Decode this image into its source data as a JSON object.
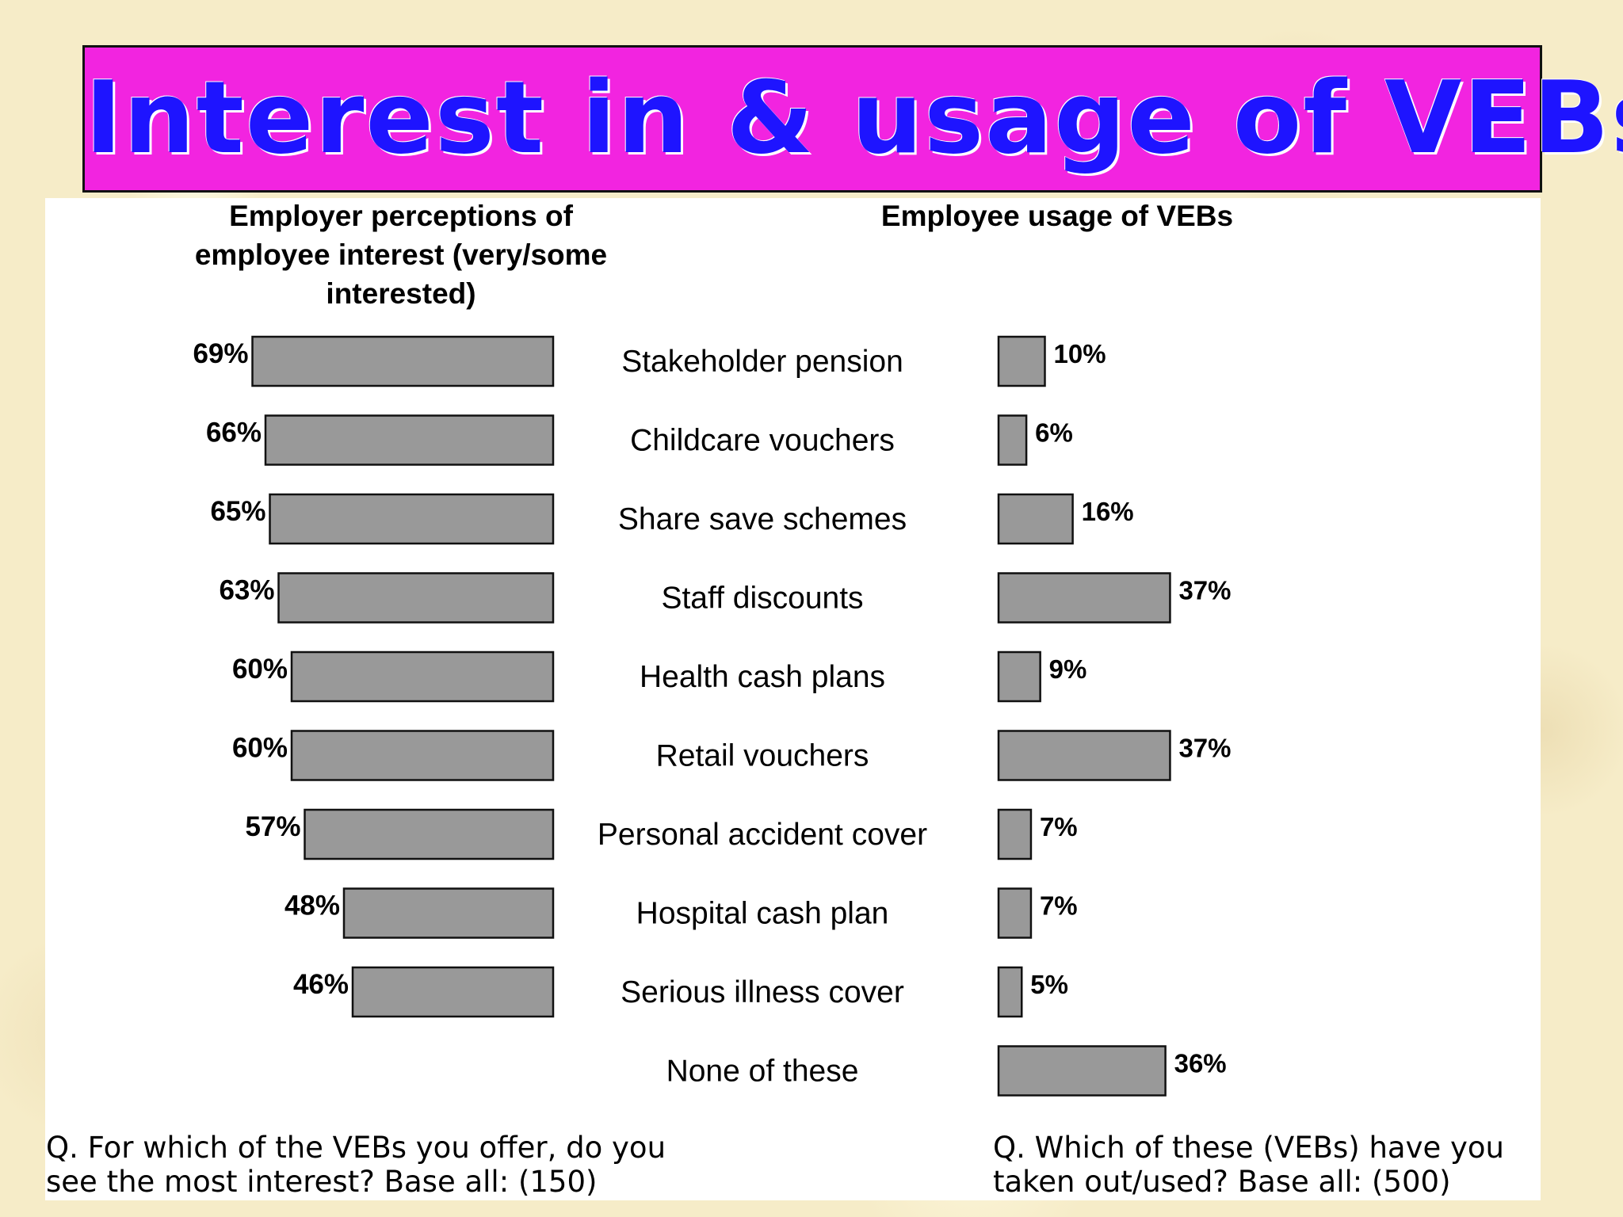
{
  "title": "Interest in & usage of VEBs",
  "left_panel": {
    "header_lines": [
      "Employer perceptions of",
      "employee interest (very/some",
      "interested)"
    ],
    "note_lines": [
      "Q. For which of the VEBs you offer, do you",
      "see the most interest? Base all: (150)"
    ]
  },
  "right_panel": {
    "header": "Employee usage of VEBs",
    "note_lines": [
      "Q. Which of these (VEBs) have you",
      "taken out/used? Base all: (500)"
    ]
  },
  "colors": {
    "bar_fill": "#999999",
    "bar_stroke": "#111111",
    "banner": "#f224e0",
    "title_text": "#1e14ff"
  },
  "chart_data": {
    "type": "bar",
    "orientation": "horizontal",
    "categories": [
      "Stakeholder pension",
      "Childcare vouchers",
      "Share save schemes",
      "Staff discounts",
      "Health cash plans",
      "Retail vouchers",
      "Personal accident cover",
      "Hospital cash plan",
      "Serious illness cover",
      "None of these"
    ],
    "series": [
      {
        "values": [
          69,
          66,
          65,
          63,
          60,
          60,
          57,
          48,
          46,
          null
        ],
        "labels": [
          "69%",
          "66%",
          "65%",
          "63%",
          "60%",
          "60%",
          "57%",
          "48%",
          "46%",
          null
        ]
      },
      {
        "values": [
          10,
          6,
          16,
          37,
          9,
          37,
          7,
          7,
          5,
          36
        ],
        "labels": [
          "10%",
          "6%",
          "16%",
          "37%",
          "9%",
          "37%",
          "7%",
          "7%",
          "5%",
          "36%"
        ]
      }
    ],
    "grid": false,
    "legend": "none"
  }
}
